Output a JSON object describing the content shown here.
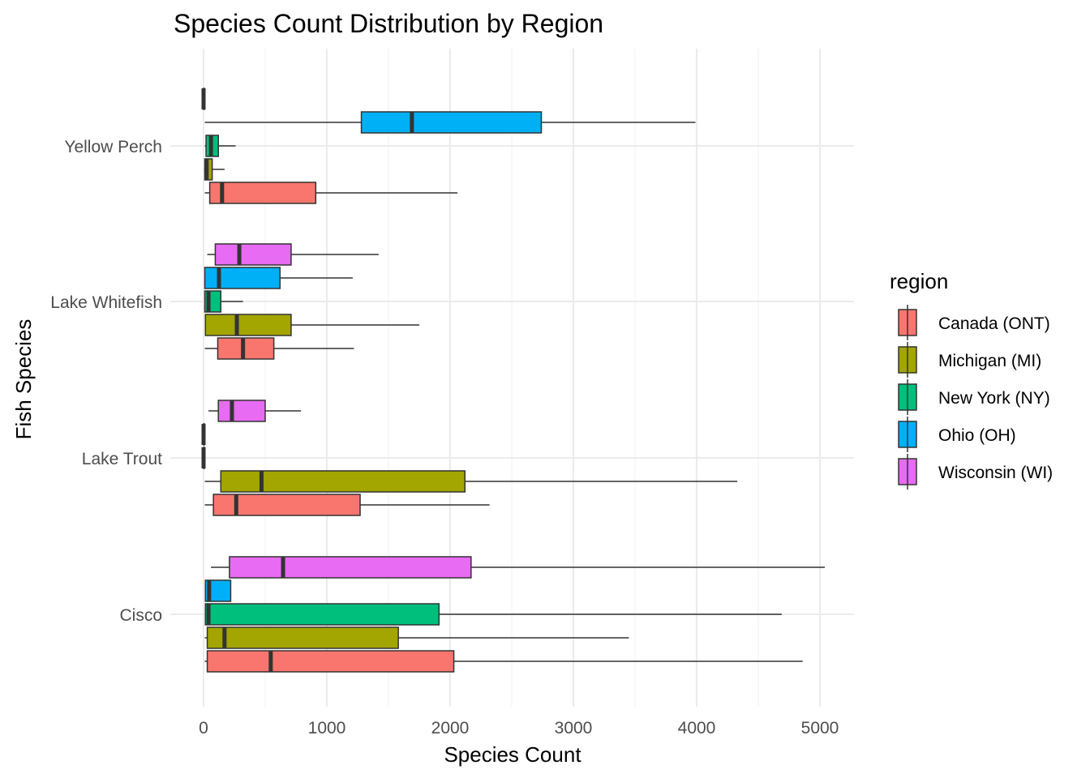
{
  "chart_data": {
    "type": "boxplot",
    "orientation": "horizontal",
    "title": "Species Count Distribution by Region",
    "xlabel": "Species Count",
    "ylabel": "Fish Species",
    "xlim": [
      -300,
      5300
    ],
    "x_ticks": [
      0,
      1000,
      2000,
      3000,
      4000,
      5000
    ],
    "x_tick_labels": [
      "0",
      "1000",
      "2000",
      "3000",
      "4000",
      "5000"
    ],
    "categories": [
      "Cisco",
      "Lake Trout",
      "Lake Whitefish",
      "Yellow Perch"
    ],
    "legend": {
      "title": "region",
      "position": "right",
      "entries": [
        "Canada (ONT)",
        "Michigan (MI)",
        "New York (NY)",
        "Ohio (OH)",
        "Wisconsin (WI)"
      ]
    },
    "colors": {
      "Canada (ONT)": "#F8766D",
      "Michigan (MI)": "#A3A500",
      "New York (NY)": "#00BF7D",
      "Ohio (OH)": "#00B0F6",
      "Wisconsin (WI)": "#E76BF3"
    },
    "grid": true,
    "boxes": [
      {
        "category": "Cisco",
        "region": "Canada (ONT)",
        "min": 10,
        "q1": 30,
        "median": 545,
        "q3": 2030,
        "max": 4860
      },
      {
        "category": "Cisco",
        "region": "Michigan (MI)",
        "min": 10,
        "q1": 30,
        "median": 170,
        "q3": 1580,
        "max": 3450
      },
      {
        "category": "Cisco",
        "region": "New York (NY)",
        "min": 10,
        "q1": 15,
        "median": 40,
        "q3": 1910,
        "max": 4690
      },
      {
        "category": "Cisco",
        "region": "Ohio (OH)",
        "min": 10,
        "q1": 15,
        "median": 45,
        "q3": 220,
        "max": 220
      },
      {
        "category": "Cisco",
        "region": "Wisconsin (WI)",
        "min": 60,
        "q1": 210,
        "median": 645,
        "q3": 2170,
        "max": 5040
      },
      {
        "category": "Lake Trout",
        "region": "Canada (ONT)",
        "min": 10,
        "q1": 80,
        "median": 265,
        "q3": 1270,
        "max": 2320
      },
      {
        "category": "Lake Trout",
        "region": "Michigan (MI)",
        "min": 10,
        "q1": 140,
        "median": 470,
        "q3": 2120,
        "max": 4330
      },
      {
        "category": "Lake Trout",
        "region": "New York (NY)",
        "min": 0,
        "q1": 0,
        "median": 0,
        "q3": 0,
        "max": 0
      },
      {
        "category": "Lake Trout",
        "region": "Ohio (OH)",
        "min": 0,
        "q1": 0,
        "median": 0,
        "q3": 0,
        "max": 0
      },
      {
        "category": "Lake Trout",
        "region": "Wisconsin (WI)",
        "min": 40,
        "q1": 120,
        "median": 230,
        "q3": 500,
        "max": 790
      },
      {
        "category": "Lake Whitefish",
        "region": "Canada (ONT)",
        "min": 10,
        "q1": 115,
        "median": 320,
        "q3": 570,
        "max": 1220
      },
      {
        "category": "Lake Whitefish",
        "region": "Michigan (MI)",
        "min": 10,
        "q1": 15,
        "median": 270,
        "q3": 710,
        "max": 1750
      },
      {
        "category": "Lake Whitefish",
        "region": "New York (NY)",
        "min": 10,
        "q1": 10,
        "median": 40,
        "q3": 140,
        "max": 320
      },
      {
        "category": "Lake Whitefish",
        "region": "Ohio (OH)",
        "min": 10,
        "q1": 10,
        "median": 125,
        "q3": 620,
        "max": 1210
      },
      {
        "category": "Lake Whitefish",
        "region": "Wisconsin (WI)",
        "min": 30,
        "q1": 95,
        "median": 290,
        "q3": 710,
        "max": 1420
      },
      {
        "category": "Yellow Perch",
        "region": "Canada (ONT)",
        "min": 10,
        "q1": 50,
        "median": 150,
        "q3": 910,
        "max": 2060
      },
      {
        "category": "Yellow Perch",
        "region": "Michigan (MI)",
        "min": 5,
        "q1": 10,
        "median": 25,
        "q3": 70,
        "max": 170
      },
      {
        "category": "Yellow Perch",
        "region": "New York (NY)",
        "min": 10,
        "q1": 20,
        "median": 60,
        "q3": 120,
        "max": 260
      },
      {
        "category": "Yellow Perch",
        "region": "Ohio (OH)",
        "min": 10,
        "q1": 1280,
        "median": 1690,
        "q3": 2740,
        "max": 3990
      },
      {
        "category": "Yellow Perch",
        "region": "Wisconsin (WI)",
        "min": 0,
        "q1": 0,
        "median": 0,
        "q3": 0,
        "max": 0
      }
    ]
  }
}
